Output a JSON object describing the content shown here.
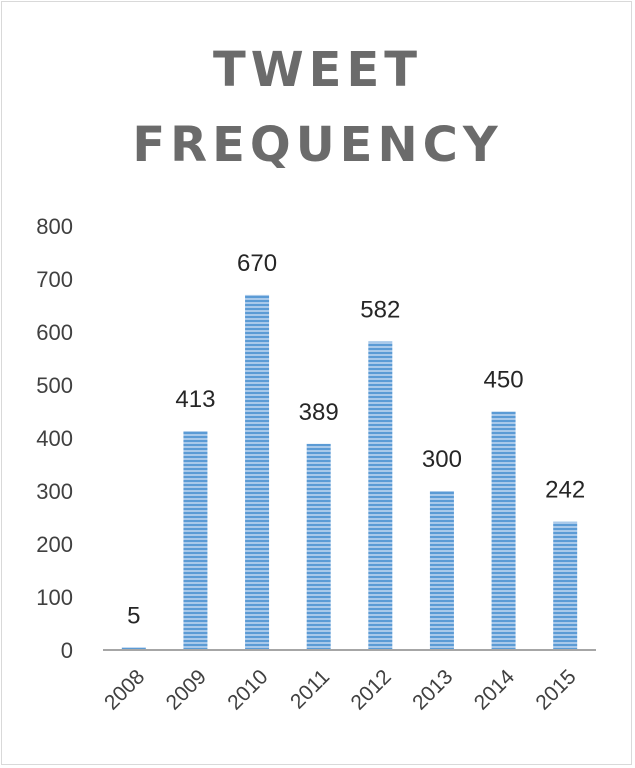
{
  "chart_data": {
    "type": "bar",
    "title_lines": [
      "TWEET",
      "FREQUENCY"
    ],
    "categories": [
      "2008",
      "2009",
      "2010",
      "2011",
      "2012",
      "2013",
      "2014",
      "2015"
    ],
    "values": [
      5,
      413,
      670,
      389,
      582,
      300,
      450,
      242
    ],
    "data_labels": [
      "5",
      "413",
      "670",
      "389",
      "582",
      "300",
      "450",
      "242"
    ],
    "ylim": [
      0,
      800
    ],
    "yticks": [
      0,
      100,
      200,
      300,
      400,
      500,
      600,
      700,
      800
    ],
    "xlabel": "",
    "ylabel": "",
    "grid": false,
    "legend": "none",
    "bar_color": "#5b9bd5",
    "bar_stripe_color": "#ffffff",
    "text_color": "#404040",
    "title_color": "#6b6b6b"
  }
}
